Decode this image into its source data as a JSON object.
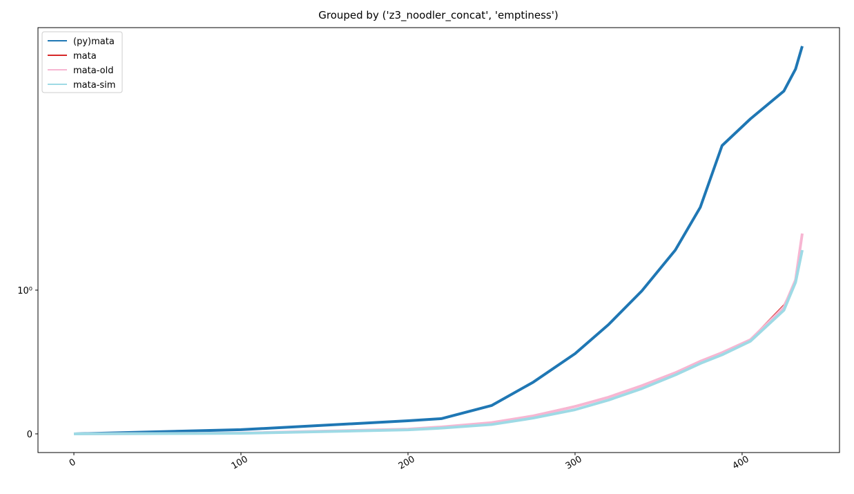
{
  "chart_data": {
    "type": "line",
    "title": "Grouped by ('z3_noodler_concat', 'emptiness')",
    "xlim": [
      -21.5,
      458.3
    ],
    "xticks": [
      0,
      100,
      200,
      300,
      400
    ],
    "ylim": [
      -0.13,
      107
    ],
    "yscale": "symlog",
    "linthresh": 1,
    "yticks": [
      0,
      {
        "value": 1,
        "label": "10⁰"
      }
    ],
    "legend": "upper left",
    "x": [
      0,
      100,
      200,
      220,
      250,
      275,
      300,
      320,
      340,
      360,
      375,
      388,
      405,
      425,
      432,
      436
    ],
    "series": [
      {
        "name": "(py)mata",
        "color": "#1f77b4",
        "width": 4,
        "values": [
          0,
          0.029,
          0.091,
          0.106,
          0.197,
          0.36,
          0.558,
          0.76,
          0.995,
          2.04,
          4.38,
          13.1,
          21.1,
          34.6,
          51.2,
          76.9
        ]
      },
      {
        "name": "mata",
        "color": "#d62728",
        "width": 1,
        "values": [
          0,
          0.005,
          0.034,
          0.05,
          0.082,
          0.13,
          0.197,
          0.26,
          0.341,
          0.43,
          0.51,
          0.57,
          0.66,
          0.9,
          1.2,
          2.5
        ]
      },
      {
        "name": "mata-old",
        "color": "#f7b6d2",
        "width": 4,
        "values": [
          0,
          0.005,
          0.033,
          0.048,
          0.078,
          0.125,
          0.19,
          0.255,
          0.335,
          0.425,
          0.505,
          0.565,
          0.655,
          0.88,
          1.2,
          2.74
        ]
      },
      {
        "name": "mata-sim",
        "color": "#9edae5",
        "width": 4,
        "values": [
          0,
          0.004,
          0.028,
          0.04,
          0.065,
          0.11,
          0.168,
          0.235,
          0.315,
          0.41,
          0.49,
          0.55,
          0.645,
          0.86,
          1.15,
          2.04
        ]
      }
    ]
  }
}
